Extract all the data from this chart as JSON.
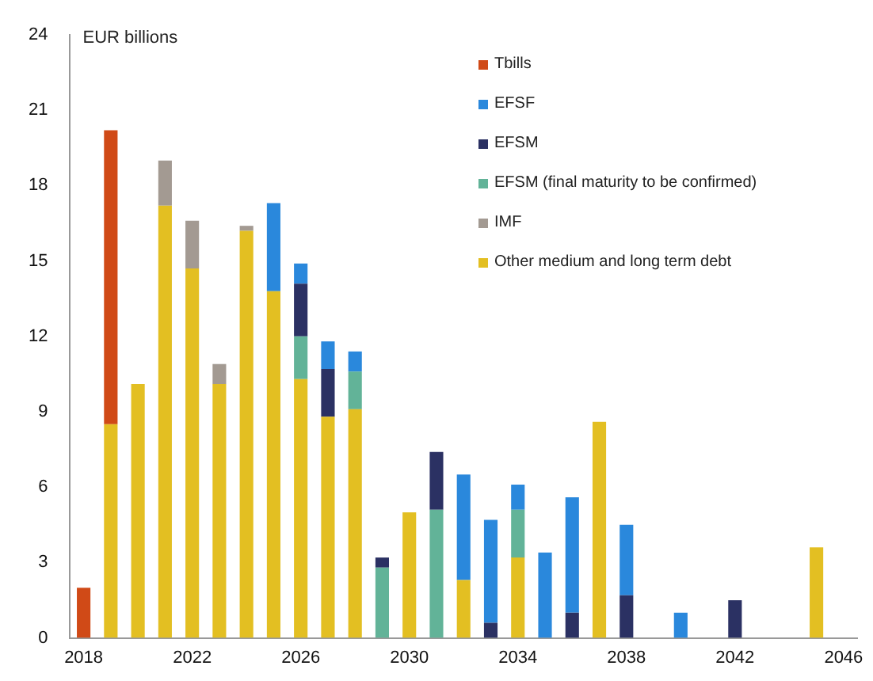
{
  "chart_data": {
    "type": "bar",
    "stacked": true,
    "ylabel": "EUR billions",
    "categories": [
      "2018",
      null,
      null,
      null,
      "2022",
      null,
      null,
      null,
      "2026",
      null,
      null,
      null,
      "2030",
      null,
      null,
      null,
      "2034",
      null,
      null,
      null,
      "2038",
      null,
      null,
      null,
      "2042",
      null,
      null,
      null,
      "2046"
    ],
    "series": [
      {
        "name": "Other medium and long term debt",
        "color": "#e3bf22",
        "values": [
          null,
          8.5,
          10.1,
          17.2,
          14.7,
          10.1,
          16.2,
          13.8,
          10.3,
          8.8,
          9.1,
          null,
          5.0,
          null,
          2.3,
          null,
          3.2,
          null,
          null,
          8.6,
          null,
          null,
          null,
          null,
          null,
          null,
          null,
          3.6,
          null
        ]
      },
      {
        "name": "IMF",
        "color": "#a39a92",
        "values": [
          null,
          null,
          null,
          1.8,
          1.9,
          0.8,
          0.2,
          null,
          null,
          null,
          null,
          null,
          null,
          null,
          null,
          null,
          null,
          null,
          null,
          null,
          null,
          null,
          null,
          null,
          null,
          null,
          null,
          null,
          null
        ]
      },
      {
        "name": "EFSM (final maturity to be confirmed)",
        "color": "#62b398",
        "values": [
          null,
          null,
          null,
          null,
          null,
          null,
          null,
          null,
          1.7,
          null,
          1.5,
          2.8,
          null,
          5.1,
          null,
          null,
          1.9,
          null,
          null,
          null,
          null,
          null,
          null,
          null,
          null,
          null,
          null,
          null,
          null
        ]
      },
      {
        "name": "EFSM",
        "color": "#2b3163",
        "values": [
          null,
          null,
          null,
          null,
          null,
          null,
          null,
          null,
          2.1,
          1.9,
          null,
          0.4,
          null,
          2.3,
          null,
          0.6,
          null,
          null,
          1.0,
          null,
          1.7,
          null,
          null,
          null,
          1.5,
          null,
          null,
          null,
          null
        ]
      },
      {
        "name": "EFSF",
        "color": "#2a88dc",
        "values": [
          null,
          null,
          null,
          null,
          null,
          null,
          null,
          3.5,
          0.8,
          1.1,
          0.8,
          null,
          null,
          null,
          4.2,
          4.1,
          1.0,
          3.4,
          4.6,
          null,
          2.8,
          null,
          1.0,
          null,
          null,
          null,
          null,
          null,
          null
        ]
      },
      {
        "name": "Tbills",
        "color": "#d04a17",
        "values": [
          2.0,
          11.7,
          null,
          null,
          null,
          null,
          null,
          null,
          null,
          null,
          null,
          null,
          null,
          null,
          null,
          null,
          null,
          null,
          null,
          null,
          null,
          null,
          null,
          null,
          null,
          null,
          null,
          null,
          null
        ]
      }
    ],
    "ylim": [
      0,
      24
    ],
    "yticks": [
      0,
      3,
      6,
      9,
      12,
      15,
      18,
      21,
      24
    ],
    "grid": false,
    "legend": "top right"
  }
}
